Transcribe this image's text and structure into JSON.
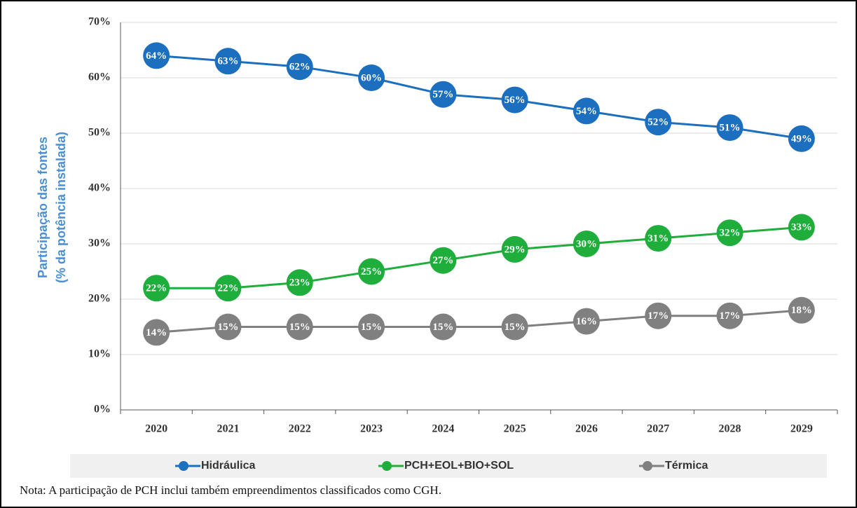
{
  "chart_data": {
    "type": "line",
    "ylabel": [
      "Participação das fontes",
      "(% da potência instalada)"
    ],
    "categories": [
      "2020",
      "2021",
      "2022",
      "2023",
      "2024",
      "2025",
      "2026",
      "2027",
      "2028",
      "2029"
    ],
    "series": [
      {
        "name": "Hidráulica",
        "color": "#1c6fbe",
        "values": [
          64,
          63,
          62,
          60,
          57,
          56,
          54,
          52,
          51,
          49
        ],
        "value_labels": [
          "64%",
          "63%",
          "62%",
          "60%",
          "57%",
          "56%",
          "54%",
          "52%",
          "51%",
          "49%"
        ]
      },
      {
        "name": "PCH+EOL+BIO+SOL",
        "color": "#1fae3c",
        "values": [
          22,
          22,
          23,
          25,
          27,
          29,
          30,
          31,
          32,
          33
        ],
        "value_labels": [
          "22%",
          "22%",
          "23%",
          "25%",
          "27%",
          "29%",
          "30%",
          "31%",
          "32%",
          "33%"
        ]
      },
      {
        "name": "Térmica",
        "color": "#808080",
        "values": [
          14,
          15,
          15,
          15,
          15,
          15,
          16,
          17,
          17,
          18
        ],
        "value_labels": [
          "14%",
          "15%",
          "15%",
          "15%",
          "15%",
          "15%",
          "16%",
          "17%",
          "17%",
          "18%"
        ]
      }
    ],
    "ylim": [
      0,
      70
    ],
    "yticks": [
      {
        "value": 0,
        "label": "0%"
      },
      {
        "value": 10,
        "label": "10%"
      },
      {
        "value": 20,
        "label": "20%"
      },
      {
        "value": 30,
        "label": "30%"
      },
      {
        "value": 40,
        "label": "40%"
      },
      {
        "value": 50,
        "label": "50%"
      },
      {
        "value": 60,
        "label": "60%"
      },
      {
        "value": 70,
        "label": "70%"
      }
    ],
    "grid": true,
    "legend": "bottom",
    "note": "Nota: A participação de PCH inclui também empreendimentos classificados como CGH."
  }
}
